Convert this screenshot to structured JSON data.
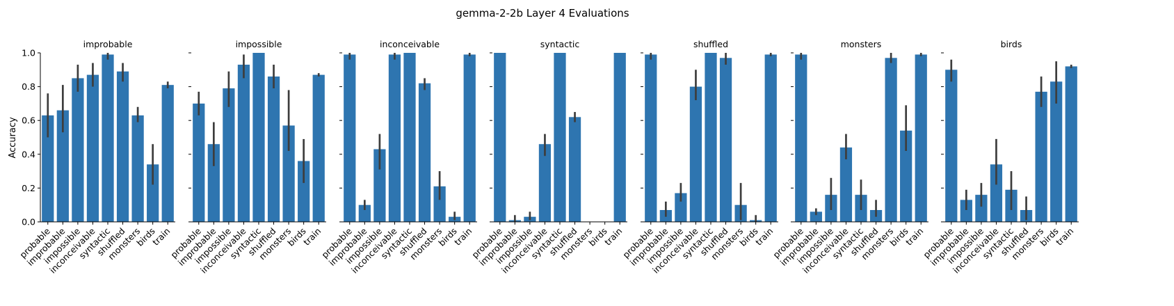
{
  "suptitle": "gemma-2-2b Layer 4 Evaluations",
  "ylabel": "Accuracy",
  "bar_color": "#2e75b0",
  "errbar_color": "#3d3d3d",
  "chart_data": [
    {
      "type": "bar",
      "title": "improbable",
      "categories": [
        "probable",
        "improbable",
        "impossible",
        "inconceivable",
        "syntactic",
        "shuffled",
        "monsters",
        "birds",
        "train"
      ],
      "values": [
        0.63,
        0.66,
        0.85,
        0.87,
        0.99,
        0.89,
        0.63,
        0.34,
        0.81
      ],
      "error_low": [
        0.5,
        0.53,
        0.77,
        0.8,
        0.96,
        0.83,
        0.59,
        0.22,
        0.79
      ],
      "error_high": [
        0.76,
        0.81,
        0.93,
        0.94,
        1.0,
        0.94,
        0.68,
        0.46,
        0.83
      ],
      "ylim": [
        0,
        1.0
      ],
      "yticks": [
        0.0,
        0.2,
        0.4,
        0.6,
        0.8,
        1.0
      ]
    },
    {
      "type": "bar",
      "title": "impossible",
      "categories": [
        "probable",
        "improbable",
        "impossible",
        "inconceivable",
        "syntactic",
        "shuffled",
        "monsters",
        "birds",
        "train"
      ],
      "values": [
        0.7,
        0.46,
        0.79,
        0.93,
        1.0,
        0.86,
        0.57,
        0.36,
        0.87
      ],
      "error_low": [
        0.63,
        0.33,
        0.68,
        0.85,
        1.0,
        0.79,
        0.42,
        0.23,
        0.86
      ],
      "error_high": [
        0.77,
        0.59,
        0.89,
        0.99,
        1.0,
        0.93,
        0.78,
        0.49,
        0.88
      ],
      "ylim": [
        0,
        1.0
      ],
      "yticks": [
        0.0,
        0.2,
        0.4,
        0.6,
        0.8,
        1.0
      ]
    },
    {
      "type": "bar",
      "title": "inconceivable",
      "categories": [
        "probable",
        "improbable",
        "impossible",
        "inconceivable",
        "syntactic",
        "shuffled",
        "monsters",
        "birds",
        "train"
      ],
      "values": [
        0.99,
        0.1,
        0.43,
        0.99,
        1.0,
        0.82,
        0.21,
        0.03,
        0.99
      ],
      "error_low": [
        0.96,
        0.07,
        0.31,
        0.96,
        1.0,
        0.78,
        0.13,
        0.01,
        0.98
      ],
      "error_high": [
        1.0,
        0.13,
        0.52,
        1.0,
        1.0,
        0.85,
        0.3,
        0.06,
        1.0
      ],
      "ylim": [
        0,
        1.0
      ],
      "yticks": [
        0.0,
        0.2,
        0.4,
        0.6,
        0.8,
        1.0
      ]
    },
    {
      "type": "bar",
      "title": "syntactic",
      "categories": [
        "probable",
        "improbable",
        "impossible",
        "inconceivable",
        "syntactic",
        "shuffled",
        "monsters",
        "birds",
        "train"
      ],
      "values": [
        1.0,
        0.01,
        0.03,
        0.46,
        1.0,
        0.62,
        0.0,
        0.0,
        1.0
      ],
      "error_low": [
        1.0,
        0.0,
        0.01,
        0.39,
        1.0,
        0.59,
        0.0,
        0.0,
        1.0
      ],
      "error_high": [
        1.0,
        0.04,
        0.06,
        0.52,
        1.0,
        0.65,
        0.0,
        0.0,
        1.0
      ],
      "ylim": [
        0,
        1.0
      ],
      "yticks": [
        0.0,
        0.2,
        0.4,
        0.6,
        0.8,
        1.0
      ]
    },
    {
      "type": "bar",
      "title": "shuffled",
      "categories": [
        "probable",
        "improbable",
        "impossible",
        "inconceivable",
        "syntactic",
        "shuffled",
        "monsters",
        "birds",
        "train"
      ],
      "values": [
        0.99,
        0.07,
        0.17,
        0.8,
        1.0,
        0.97,
        0.1,
        0.01,
        0.99
      ],
      "error_low": [
        0.96,
        0.03,
        0.12,
        0.72,
        1.0,
        0.93,
        0.01,
        0.0,
        0.98
      ],
      "error_high": [
        1.0,
        0.12,
        0.23,
        0.9,
        1.0,
        1.0,
        0.23,
        0.04,
        1.0
      ],
      "ylim": [
        0,
        1.0
      ],
      "yticks": [
        0.0,
        0.2,
        0.4,
        0.6,
        0.8,
        1.0
      ]
    },
    {
      "type": "bar",
      "title": "monsters",
      "categories": [
        "probable",
        "improbable",
        "impossible",
        "inconceivable",
        "syntactic",
        "shuffled",
        "monsters",
        "birds",
        "train"
      ],
      "values": [
        0.99,
        0.06,
        0.16,
        0.44,
        0.16,
        0.07,
        0.97,
        0.54,
        0.99
      ],
      "error_low": [
        0.96,
        0.04,
        0.07,
        0.37,
        0.07,
        0.03,
        0.94,
        0.42,
        0.98
      ],
      "error_high": [
        1.0,
        0.08,
        0.26,
        0.52,
        0.25,
        0.13,
        1.0,
        0.69,
        1.0
      ],
      "ylim": [
        0,
        1.0
      ],
      "yticks": [
        0.0,
        0.2,
        0.4,
        0.6,
        0.8,
        1.0
      ]
    },
    {
      "type": "bar",
      "title": "birds",
      "categories": [
        "probable",
        "improbable",
        "impossible",
        "inconceivable",
        "syntactic",
        "shuffled",
        "monsters",
        "birds",
        "train"
      ],
      "values": [
        0.9,
        0.13,
        0.16,
        0.34,
        0.19,
        0.07,
        0.77,
        0.83,
        0.92
      ],
      "error_low": [
        0.83,
        0.07,
        0.09,
        0.22,
        0.07,
        0.01,
        0.68,
        0.7,
        0.91
      ],
      "error_high": [
        0.96,
        0.19,
        0.23,
        0.49,
        0.3,
        0.15,
        0.86,
        0.95,
        0.93
      ],
      "ylim": [
        0,
        1.0
      ],
      "yticks": [
        0.0,
        0.2,
        0.4,
        0.6,
        0.8,
        1.0
      ]
    }
  ]
}
